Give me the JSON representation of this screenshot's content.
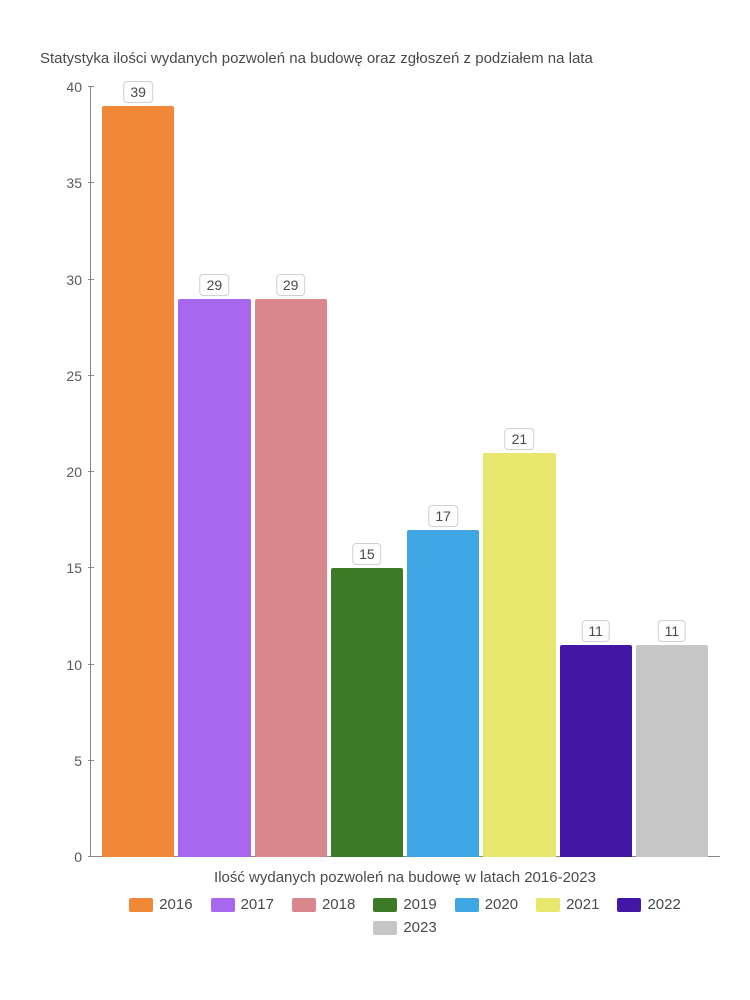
{
  "chart": {
    "type": "bar",
    "title": "Statystyka ilości wydanych pozwoleń na budowę oraz zgłoszeń z podziałem na lata",
    "title_fontsize": 15,
    "title_color": "#4a4a4a",
    "x_label": "Ilość wydanych pozwoleń na budowę w latach 2016-2023",
    "label_fontsize": 15,
    "label_color": "#4a4a4a",
    "ylim": [
      0,
      40
    ],
    "yticks": [
      0,
      5,
      10,
      15,
      20,
      25,
      30,
      35,
      40
    ],
    "y_tick_fontsize": 14,
    "y_tick_color": "#5a5a5a",
    "axis_color": "#888888",
    "background_color": "#ffffff",
    "bar_gap": 4,
    "bar_label_bg": "#fdfdfd",
    "bar_label_border": "#d0d0d0",
    "bar_label_fontsize": 14,
    "series": [
      {
        "year": "2016",
        "value": 39,
        "color": "#f08838"
      },
      {
        "year": "2017",
        "value": 29,
        "color": "#a768ef"
      },
      {
        "year": "2018",
        "value": 29,
        "color": "#da868d"
      },
      {
        "year": "2019",
        "value": 15,
        "color": "#3d7a26"
      },
      {
        "year": "2020",
        "value": 17,
        "color": "#3fa7e4"
      },
      {
        "year": "2021",
        "value": 21,
        "color": "#e9e86e"
      },
      {
        "year": "2022",
        "value": 11,
        "color": "#4316a5"
      },
      {
        "year": "2023",
        "value": 11,
        "color": "#c6c6c6"
      }
    ]
  }
}
